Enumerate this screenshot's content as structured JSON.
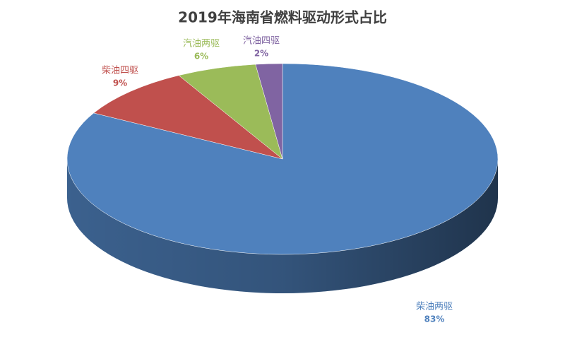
{
  "chart_data": {
    "type": "pie",
    "title": "2019年海南省燃料驱动形式占比",
    "categories": [
      "柴油两驱",
      "柴油四驱",
      "汽油两驱",
      "汽油四驱"
    ],
    "values": [
      83,
      9,
      6,
      2
    ],
    "value_labels": [
      "83%",
      "9%",
      "6%",
      "2%"
    ],
    "colors": [
      "#4f81bd",
      "#c0504d",
      "#9bbb59",
      "#8064a2"
    ]
  }
}
